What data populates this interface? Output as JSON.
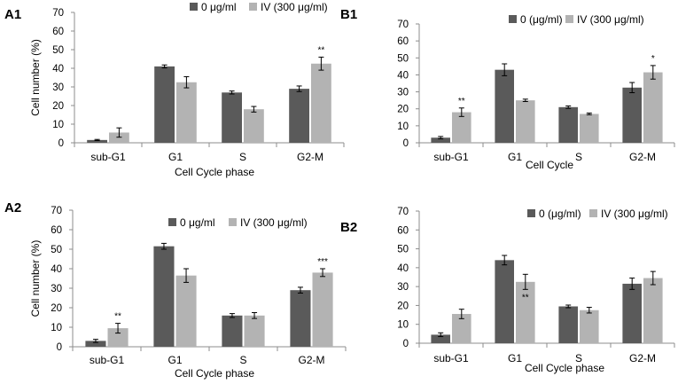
{
  "chart_data": [
    {
      "panel": "A1",
      "type": "bar",
      "title": "",
      "xlabel": "Cell Cycle phase",
      "ylabel": "Cell number (%)",
      "ylim": [
        0,
        70
      ],
      "yticks": [
        0,
        10,
        20,
        30,
        40,
        50,
        60,
        70
      ],
      "grid": false,
      "legend_position": "top",
      "categories": [
        "sub-G1",
        "G1",
        "S",
        "G2-M"
      ],
      "series": [
        {
          "name": "0 μg/ml",
          "color": "#5a5a5a",
          "values": [
            1.5,
            41,
            27,
            29
          ],
          "errors": [
            0.3,
            0.8,
            0.8,
            1.5
          ],
          "annotations": [
            "",
            "",
            "",
            ""
          ]
        },
        {
          "name": "IV (300 μg/ml)",
          "color": "#b3b3b3",
          "values": [
            5.5,
            32.5,
            18,
            42.5
          ],
          "errors": [
            2.5,
            3,
            1.5,
            3.5
          ],
          "annotations": [
            "",
            "",
            "",
            "**"
          ]
        }
      ]
    },
    {
      "panel": "B1",
      "type": "bar",
      "title": "",
      "xlabel": "Cell Cycle",
      "ylabel": "",
      "ylim": [
        0,
        70
      ],
      "yticks": [
        0,
        10,
        20,
        30,
        40,
        50,
        60,
        70
      ],
      "grid": false,
      "legend_position": "top",
      "categories": [
        "sub-G1",
        "G1",
        "S",
        "G2-M"
      ],
      "series": [
        {
          "name": "0 (μg/ml)",
          "color": "#5a5a5a",
          "values": [
            3,
            43,
            21,
            32.5
          ],
          "errors": [
            0.7,
            3.5,
            0.7,
            3
          ],
          "annotations": [
            "",
            "",
            "",
            ""
          ]
        },
        {
          "name": "IV (300 μg/ml)",
          "color": "#b3b3b3",
          "values": [
            18,
            25,
            17,
            41.5
          ],
          "errors": [
            2.5,
            0.7,
            0.5,
            4
          ],
          "annotations": [
            "**",
            "",
            "",
            "*"
          ]
        }
      ]
    },
    {
      "panel": "A2",
      "type": "bar",
      "title": "",
      "xlabel": "Cell Cycle phase",
      "ylabel": "Cell number (%)",
      "ylim": [
        0,
        70
      ],
      "yticks": [
        0,
        10,
        20,
        30,
        40,
        50,
        60,
        70
      ],
      "grid": false,
      "legend_position": "top",
      "categories": [
        "sub-G1",
        "G1",
        "S",
        "G2-M"
      ],
      "series": [
        {
          "name": "0 μg/ml",
          "color": "#5a5a5a",
          "values": [
            3,
            51.5,
            16,
            29
          ],
          "errors": [
            0.8,
            1.5,
            1,
            1.5
          ],
          "annotations": [
            "",
            "",
            "",
            ""
          ]
        },
        {
          "name": "IV (300 μg/ml)",
          "color": "#b3b3b3",
          "values": [
            9.5,
            36.5,
            16,
            38
          ],
          "errors": [
            2.5,
            3.5,
            1.5,
            2
          ],
          "annotations": [
            "**",
            "",
            "",
            "***"
          ]
        }
      ]
    },
    {
      "panel": "B2",
      "type": "bar",
      "title": "",
      "xlabel": "Cell Cycle phase",
      "ylabel": "",
      "ylim": [
        0,
        70
      ],
      "yticks": [
        0,
        10,
        20,
        30,
        40,
        50,
        60,
        70
      ],
      "grid": false,
      "legend_position": "top",
      "categories": [
        "sub-G1",
        "G1",
        "S",
        "G2-M"
      ],
      "series": [
        {
          "name": "0 (μg/ml)",
          "color": "#5a5a5a",
          "values": [
            4.5,
            44,
            19.5,
            31.5
          ],
          "errors": [
            1,
            2.5,
            0.7,
            3
          ],
          "annotations": [
            "",
            "",
            "",
            ""
          ]
        },
        {
          "name": "IV (300 μg/ml)",
          "color": "#b3b3b3",
          "values": [
            15.5,
            32.5,
            17.5,
            34.5
          ],
          "errors": [
            2.5,
            4,
            1.5,
            3.5
          ],
          "annotations": [
            "",
            "**",
            "",
            ""
          ]
        }
      ]
    }
  ]
}
